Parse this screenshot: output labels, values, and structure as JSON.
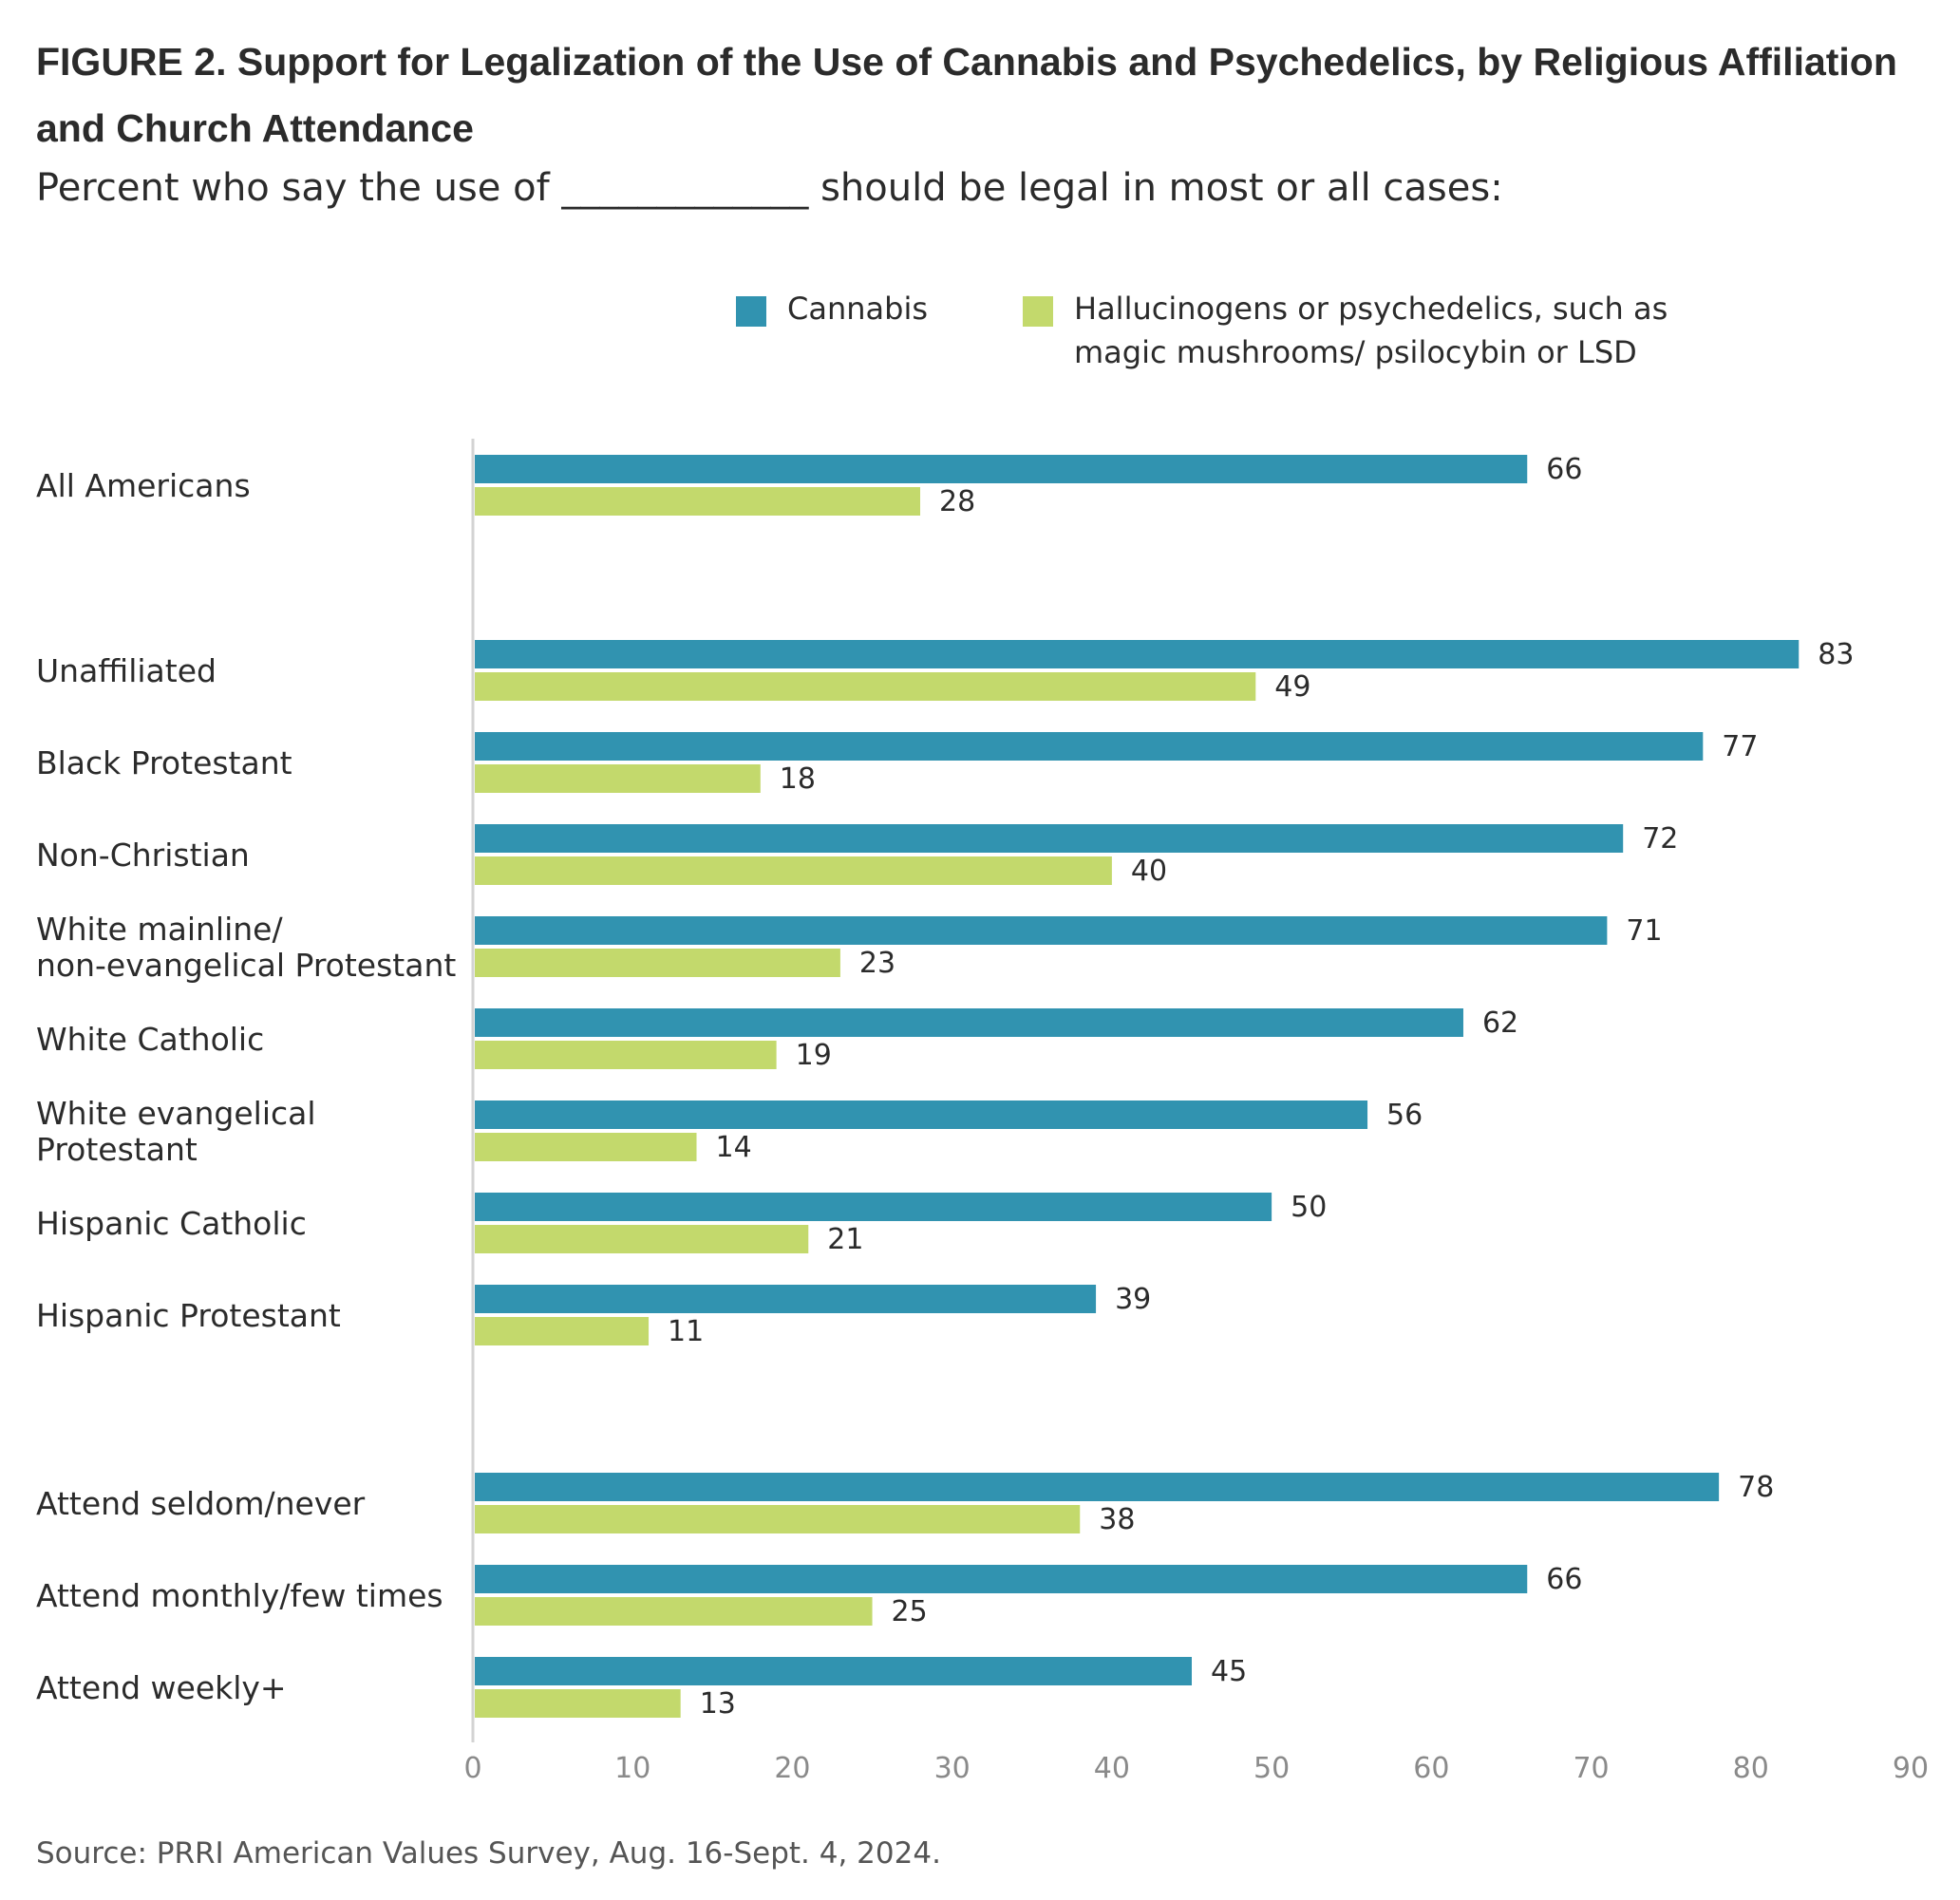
{
  "title": "FIGURE 2. Support for Legalization of the Use of Cannabis and Psychedelics, by Religious Affiliation and Church Attendance",
  "subtitle": "Percent who say the use of _____________ should be legal in most or all cases:",
  "source": "Source: PRRI American Values Survey, Aug. 16-Sept. 4, 2024.",
  "legend": [
    {
      "name": "Cannabis",
      "color": "#3193b0"
    },
    {
      "name": "Hallucinogens or psychedelics, such as magic mushrooms/ psilocybin or LSD",
      "color": "#c3d96c"
    }
  ],
  "chart_data": {
    "type": "bar",
    "orientation": "horizontal",
    "categories": [
      "All Americans",
      "Unaffiliated",
      "Black Protestant",
      "Non-Christian",
      "White mainline/ non-evangelical Protestant",
      "White Catholic",
      "White evangelical Protestant",
      "Hispanic Catholic",
      "Hispanic Protestant",
      "Attend seldom/never",
      "Attend monthly/few times",
      "Attend weekly+"
    ],
    "category_lines": [
      [
        "All Americans"
      ],
      [
        "Unaffiliated"
      ],
      [
        "Black Protestant"
      ],
      [
        "Non-Christian"
      ],
      [
        "White mainline/",
        "non-evangelical Protestant"
      ],
      [
        "White Catholic"
      ],
      [
        "White evangelical",
        "Protestant"
      ],
      [
        "Hispanic Catholic"
      ],
      [
        "Hispanic Protestant"
      ],
      [
        "Attend seldom/never"
      ],
      [
        "Attend monthly/few times"
      ],
      [
        "Attend weekly+"
      ]
    ],
    "series": [
      {
        "name": "Cannabis",
        "color": "#3193b0",
        "values": [
          66,
          83,
          77,
          72,
          71,
          62,
          56,
          50,
          39,
          78,
          66,
          45
        ]
      },
      {
        "name": "Hallucinogens or psychedelics, such as magic mushrooms/ psilocybin or LSD",
        "color": "#c3d96c",
        "values": [
          28,
          49,
          18,
          40,
          23,
          19,
          14,
          21,
          11,
          38,
          25,
          13
        ]
      }
    ],
    "xlim": [
      0,
      90
    ],
    "xticks": [
      0,
      10,
      20,
      30,
      40,
      50,
      60,
      70,
      80,
      90
    ],
    "xlabel": "",
    "ylabel": "",
    "grid": false,
    "legend_position": "top"
  }
}
